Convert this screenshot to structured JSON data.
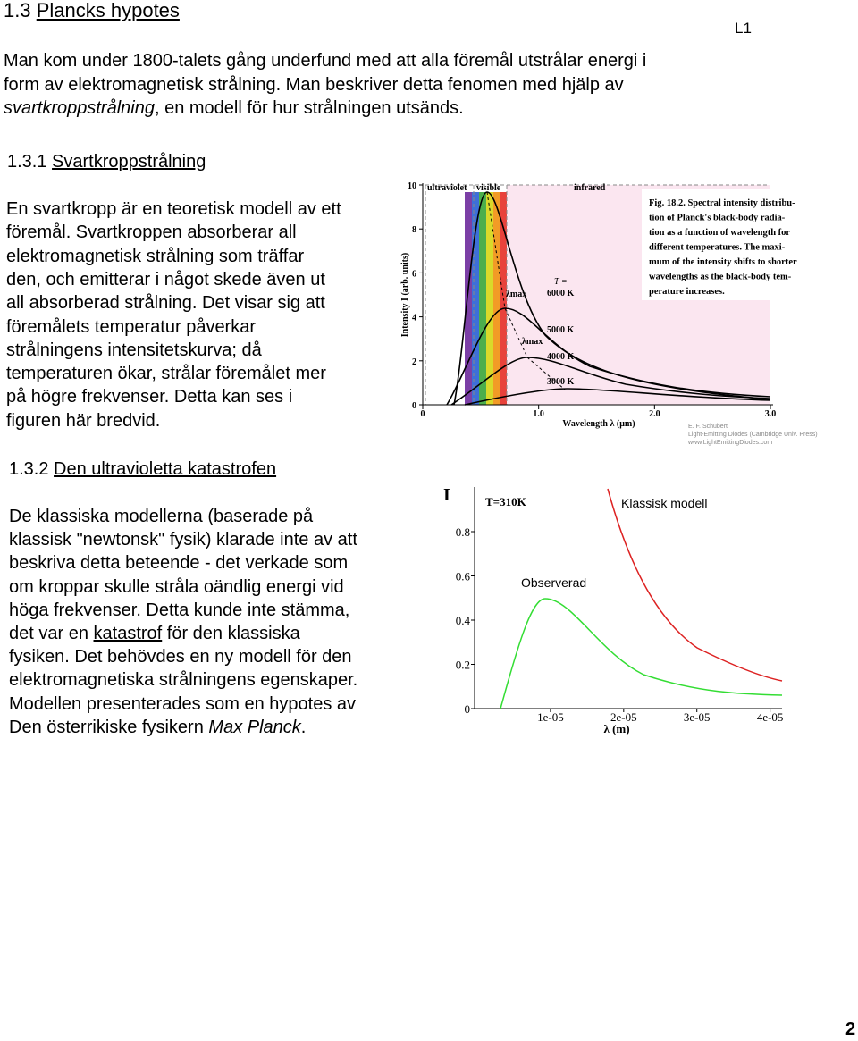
{
  "header": {
    "number": "1.3",
    "title": "Plancks hypotes",
    "tag": "L1"
  },
  "intro": {
    "lines": [
      [
        "Man kom under 1800-talets gång underfund med att alla föremål utstrålar energi i"
      ],
      [
        "form av elektromagnetisk strålning. Man beskriver detta fenomen med hjälp av"
      ],
      [
        "svartkroppstrålning",
        ", en modell för hur strålningen utsänds."
      ]
    ]
  },
  "section1": {
    "number": "1.3.1",
    "title": "Svartkroppstrålning",
    "lines": [
      "En svartkropp är en teoretisk modell av ett",
      "föremål. Svartkroppen absorberar all",
      "elektromagnetisk strålning som träffar",
      "den, och emitterar i något skede även ut",
      "all absorberad strålning. Det visar sig att",
      "föremålets temperatur påverkar",
      "strålningens intensitetskurva; då",
      "temperaturen ökar, strålar föremålet mer",
      "på högre frekvenser. Detta kan ses i",
      "figuren här bredvid."
    ]
  },
  "figure1": {
    "regions": [
      "ultraviolet",
      "visible",
      "infrared"
    ],
    "y_label": "Intensity I (arb. units)",
    "x_label": "Wavelength λ (μm)",
    "t_label": "T =",
    "temps": [
      "6000 K",
      "5000 K",
      "4000 K",
      "3000 K"
    ],
    "lambda_max": "λmax",
    "xlim": [
      0,
      3
    ],
    "ylim": [
      0,
      10
    ],
    "xticks": [
      0,
      {
        "value": 1,
        "label": "1.0"
      },
      {
        "value": 2,
        "label": "2.0"
      },
      {
        "value": 3,
        "label": "3.0"
      }
    ],
    "yticks": [
      0,
      2,
      4,
      6,
      8,
      10
    ],
    "caption": [
      "Fig. 18.2. Spectral intensity distribu-",
      "tion of Planck's black-body radia-",
      "tion as a function of wavelength for",
      "different temperatures. The maxi-",
      "mum of the intensity shifts to shorter",
      "wavelengths as the black-body tem-",
      "perature increases."
    ],
    "credits": [
      "E. F. Schubert",
      "Light-Emitting Diodes (Cambridge Univ. Press)",
      "www.LightEmittingDiodes.com"
    ]
  },
  "section2": {
    "number": "1.3.2",
    "title": "Den ultravioletta katastrofen",
    "lines": [
      [
        "De klassiska modellerna (baserade på"
      ],
      [
        "klassisk \"newtonsk\" fysik) klarade inte av att"
      ],
      [
        "beskriva detta beteende - det verkade som"
      ],
      [
        "om kroppar skulle stråla oändlig energi vid"
      ],
      [
        "höga frekvenser. Detta kunde inte stämma,"
      ],
      [
        "det var en ",
        "katastrof",
        " för den klassiska"
      ],
      [
        "fysiken. Det behövdes en ny modell för den"
      ],
      [
        "elektromagnetiska strålningens egenskaper."
      ],
      [
        "Modellen presenterades som en hypotes av"
      ],
      [
        "Den österrikiske fysikern ",
        "Max Planck",
        "."
      ]
    ]
  },
  "figure2": {
    "y_label": "I",
    "temperature": "T=310K",
    "x_label": "λ (m)",
    "classical": "Klassisk modell",
    "observed": "Observerad",
    "xlim": [
      0,
      4.2e-05
    ],
    "ylim": [
      0,
      1
    ],
    "xticks": [
      {
        "value": 1e-05,
        "label": "1e-05"
      },
      {
        "value": 2e-05,
        "label": "2e-05"
      },
      {
        "value": 3e-05,
        "label": "3e-05"
      },
      {
        "value": 4e-05,
        "label": "4e-05"
      }
    ],
    "yticks": [
      0,
      0.2,
      0.4,
      0.6,
      0.8
    ]
  },
  "page_number": "2"
}
